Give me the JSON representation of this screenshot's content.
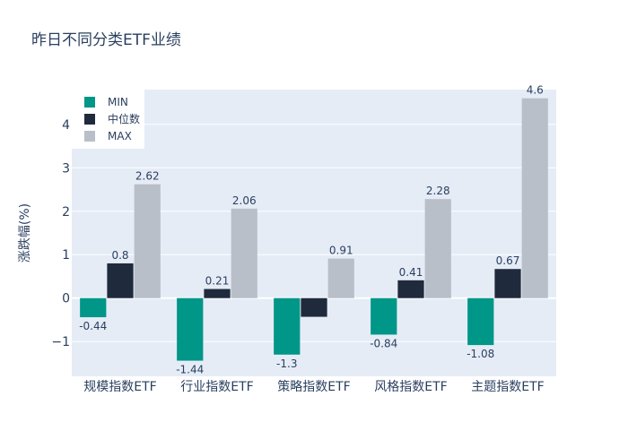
{
  "chart_data": {
    "type": "bar",
    "title": "昨日不同分类ETF业绩",
    "xlabel": "",
    "ylabel": "涨跌幅(%)",
    "categories": [
      "规模指数ETF",
      "行业指数ETF",
      "策略指数ETF",
      "风格指数ETF",
      "主题指数ETF"
    ],
    "series": [
      {
        "name": "MIN",
        "values": [
          -0.44,
          -1.44,
          -1.3,
          -0.84,
          -1.08
        ],
        "labels": [
          "-0.44",
          "-1.44",
          "-1.3",
          "-0.84",
          "-1.08"
        ],
        "color": "#009688"
      },
      {
        "name": "中位数",
        "values": [
          0.8,
          0.21,
          -0.43,
          0.41,
          0.67
        ],
        "labels": [
          "0.8",
          "0.21",
          "",
          "0.41",
          "0.67"
        ],
        "color": "#1f2a3c"
      },
      {
        "name": "MAX",
        "values": [
          2.62,
          2.06,
          0.91,
          2.28,
          4.6
        ],
        "labels": [
          "2.62",
          "2.06",
          "0.91",
          "2.28",
          "4.6"
        ],
        "color": "#b8bfc8"
      }
    ],
    "ylim": [
      -1.8,
      4.8
    ],
    "yticks": [
      -1,
      0,
      1,
      2,
      3,
      4
    ],
    "ytick_labels": [
      "−1",
      "0",
      "1",
      "2",
      "3",
      "4"
    ],
    "grid": true,
    "legend_position": "top-left",
    "colors": {
      "plot_bg": "#e5ecf6",
      "grid": "#ffffff",
      "text": "#2a3f5f"
    }
  }
}
